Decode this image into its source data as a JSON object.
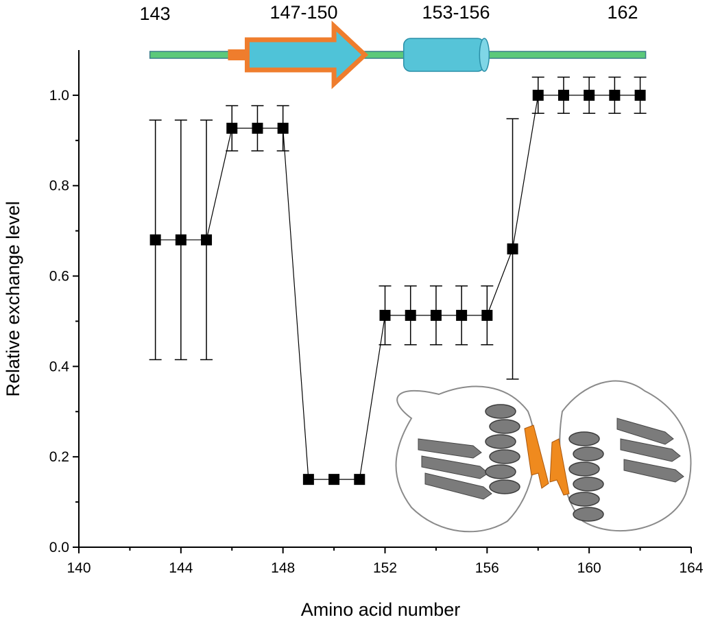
{
  "chart_data": {
    "type": "scatter",
    "xlabel": "Amino acid number",
    "ylabel": "Relative exchange level",
    "xlim": [
      140,
      164
    ],
    "ylim": [
      0,
      1.1
    ],
    "x_ticks": [
      "140",
      "144",
      "148",
      "152",
      "156",
      "160",
      "164"
    ],
    "y_ticks": [
      "0.0",
      "0.2",
      "0.4",
      "0.6",
      "0.8",
      "1.0"
    ],
    "grid": false,
    "series": [
      {
        "marker": "square",
        "color": "#000000",
        "points": [
          {
            "x": 143,
            "y": 0.68,
            "err": 0.265
          },
          {
            "x": 144,
            "y": 0.68,
            "err": 0.265
          },
          {
            "x": 145,
            "y": 0.68,
            "err": 0.265
          },
          {
            "x": 146,
            "y": 0.927,
            "err": 0.05
          },
          {
            "x": 147,
            "y": 0.927,
            "err": 0.05
          },
          {
            "x": 148,
            "y": 0.927,
            "err": 0.05
          },
          {
            "x": 149,
            "y": 0.15,
            "err": 0
          },
          {
            "x": 150,
            "y": 0.15,
            "err": 0
          },
          {
            "x": 151,
            "y": 0.15,
            "err": 0
          },
          {
            "x": 152,
            "y": 0.513,
            "err": 0.065
          },
          {
            "x": 153,
            "y": 0.513,
            "err": 0.065
          },
          {
            "x": 154,
            "y": 0.513,
            "err": 0.065
          },
          {
            "x": 155,
            "y": 0.513,
            "err": 0.065
          },
          {
            "x": 156,
            "y": 0.513,
            "err": 0.065
          },
          {
            "x": 157,
            "y": 0.66,
            "err": 0.288
          },
          {
            "x": 158,
            "y": 1.0,
            "err": 0.04
          },
          {
            "x": 159,
            "y": 1.0,
            "err": 0.04
          },
          {
            "x": 160,
            "y": 1.0,
            "err": 0.04
          },
          {
            "x": 161,
            "y": 1.0,
            "err": 0.04
          },
          {
            "x": 162,
            "y": 1.0,
            "err": 0.04
          }
        ]
      }
    ],
    "secondary_structure": {
      "labels": [
        "143",
        "147-150",
        "153-156",
        "162"
      ],
      "strand_range": [
        147,
        150
      ],
      "helix_range": [
        153,
        156
      ],
      "line_range": [
        143,
        162
      ],
      "colors": {
        "coil": "#5cc97a",
        "strand_fill": "#4fc3d8",
        "strand_outline": "#ef7d2d",
        "helix": "#56c4d8"
      }
    },
    "inset": {
      "content": "protein-dimer-cartoon",
      "colors": {
        "protein": "#7b7b7b",
        "highlight": "#ef8a1e"
      }
    }
  }
}
